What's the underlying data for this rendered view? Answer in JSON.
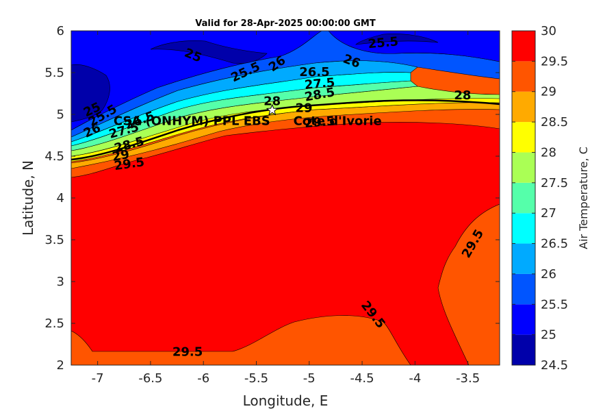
{
  "chart_data": {
    "type": "contour",
    "title": "Valid for 28-Apr-2025 00:00:00 GMT",
    "xlabel": "Longitude, E",
    "ylabel": "Latitude, N",
    "xlim": [
      -7.25,
      -3.2
    ],
    "ylim": [
      2,
      6
    ],
    "xticks": [
      -7,
      -6.5,
      -6,
      -5.5,
      -5,
      -4.5,
      -4,
      -3.5
    ],
    "yticks": [
      2,
      2.5,
      3,
      3.5,
      4,
      4.5,
      5,
      5.5,
      6
    ],
    "xtick_labels": [
      "-7",
      "-6.5",
      "-6",
      "-5.5",
      "-5",
      "-4.5",
      "-4",
      "-3.5"
    ],
    "ytick_labels": [
      "2",
      "2.5",
      "3",
      "3.5",
      "4",
      "4.5",
      "5",
      "5.5",
      "6"
    ],
    "colorbar": {
      "label": "Air Temperature, C",
      "levels": [
        24.5,
        25,
        25.5,
        26,
        26.5,
        27,
        27.5,
        28,
        28.5,
        29,
        29.5,
        30
      ],
      "tick_labels": [
        "24.5",
        "25",
        "25.5",
        "26",
        "26.5",
        "27",
        "27.5",
        "28",
        "28.5",
        "29",
        "29.5",
        "30"
      ],
      "colors": [
        "#0000aa",
        "#0000ff",
        "#0055ff",
        "#00aaff",
        "#00ffff",
        "#55ffaa",
        "#aaff55",
        "#ffff00",
        "#ffaa00",
        "#ff5500",
        "#ff0000"
      ]
    },
    "contour_labels": [
      {
        "text": "25",
        "lon": -7.05,
        "lat": 5.05,
        "rot": -25
      },
      {
        "text": "25.5",
        "lon": -6.95,
        "lat": 4.98,
        "rot": -30
      },
      {
        "text": "26",
        "lon": -7.05,
        "lat": 4.8,
        "rot": -25
      },
      {
        "text": "26.5",
        "lon": -6.6,
        "lat": 4.92,
        "rot": -20
      },
      {
        "text": "27.5",
        "lon": -6.75,
        "lat": 4.8,
        "rot": -15
      },
      {
        "text": "28.5",
        "lon": -6.7,
        "lat": 4.63,
        "rot": -15
      },
      {
        "text": "29",
        "lon": -6.78,
        "lat": 4.5,
        "rot": -10
      },
      {
        "text": "29.5",
        "lon": -6.7,
        "lat": 4.4,
        "rot": -8
      },
      {
        "text": "25",
        "lon": -6.1,
        "lat": 5.7,
        "rot": 22
      },
      {
        "text": "25.5",
        "lon": -5.6,
        "lat": 5.5,
        "rot": -25
      },
      {
        "text": "26",
        "lon": -5.3,
        "lat": 5.6,
        "rot": -35
      },
      {
        "text": "25.5",
        "lon": -4.3,
        "lat": 5.85,
        "rot": -5
      },
      {
        "text": "26",
        "lon": -4.6,
        "lat": 5.63,
        "rot": 20
      },
      {
        "text": "26.5",
        "lon": -4.95,
        "lat": 5.5,
        "rot": 0
      },
      {
        "text": "27.5",
        "lon": -4.9,
        "lat": 5.36,
        "rot": -5
      },
      {
        "text": "28.5",
        "lon": -4.9,
        "lat": 5.23,
        "rot": -10
      },
      {
        "text": "28",
        "lon": -5.35,
        "lat": 5.15,
        "rot": 0
      },
      {
        "text": "29",
        "lon": -5.05,
        "lat": 5.07,
        "rot": 0
      },
      {
        "text": "29.5",
        "lon": -4.9,
        "lat": 4.9,
        "rot": -5
      },
      {
        "text": "28",
        "lon": -3.55,
        "lat": 5.22,
        "rot": 0
      },
      {
        "text": "29.5",
        "lon": -3.45,
        "lat": 3.45,
        "rot": -60
      },
      {
        "text": "29.5",
        "lon": -4.4,
        "lat": 2.6,
        "rot": 52
      },
      {
        "text": "29.5",
        "lon": -6.15,
        "lat": 2.15,
        "rot": 0
      }
    ],
    "annotations": [
      {
        "text": "CSA (ONHYM) PPL EBS",
        "lon": -6.85,
        "lat": 4.93
      },
      {
        "text": "Cote d'Ivorie",
        "lon": -5.15,
        "lat": 4.93
      }
    ],
    "marker": {
      "label": "site-star",
      "lon": -5.35,
      "lat": 5.05
    }
  }
}
